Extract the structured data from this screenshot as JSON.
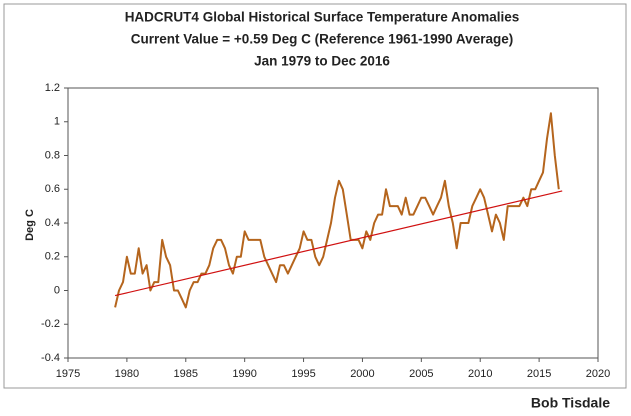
{
  "chart_data": {
    "type": "line",
    "title": "HADCRUT4 Global Historical Surface Temperature Anomalies",
    "subtitle": "Current Value = +0.59 Deg C (Reference 1961-1990 Average)",
    "period": "Jan 1979 to Dec 2016",
    "ylabel": "Deg C",
    "credit": "Bob Tisdale",
    "xlim": [
      1975,
      2020
    ],
    "xticks": [
      1975,
      1980,
      1985,
      1990,
      1995,
      2000,
      2005,
      2010,
      2015,
      2020
    ],
    "ylim": [
      -0.4,
      1.2
    ],
    "yticks": [
      -0.4,
      -0.2,
      0,
      0.2,
      0.4,
      0.6,
      0.8,
      1,
      1.2
    ],
    "grid": false,
    "series": [
      {
        "color": "#b5651d",
        "x": [
          1979,
          1979.33,
          1979.67,
          1980,
          1980.33,
          1980.67,
          1981,
          1981.33,
          1981.67,
          1982,
          1982.33,
          1982.67,
          1983,
          1983.33,
          1983.67,
          1984,
          1984.33,
          1984.67,
          1985,
          1985.33,
          1985.67,
          1986,
          1986.33,
          1986.67,
          1987,
          1987.33,
          1987.67,
          1988,
          1988.33,
          1988.67,
          1989,
          1989.33,
          1989.67,
          1990,
          1990.33,
          1990.67,
          1991,
          1991.33,
          1991.67,
          1992,
          1992.33,
          1992.67,
          1993,
          1993.33,
          1993.67,
          1994,
          1994.33,
          1994.67,
          1995,
          1995.33,
          1995.67,
          1996,
          1996.33,
          1996.67,
          1997,
          1997.33,
          1997.67,
          1998,
          1998.33,
          1998.67,
          1999,
          1999.33,
          1999.67,
          2000,
          2000.33,
          2000.67,
          2001,
          2001.33,
          2001.67,
          2002,
          2002.33,
          2002.67,
          2003,
          2003.33,
          2003.67,
          2004,
          2004.33,
          2004.67,
          2005,
          2005.33,
          2005.67,
          2006,
          2006.33,
          2006.67,
          2007,
          2007.33,
          2007.67,
          2008,
          2008.33,
          2008.67,
          2009,
          2009.33,
          2009.67,
          2010,
          2010.33,
          2010.67,
          2011,
          2011.33,
          2011.67,
          2012,
          2012.33,
          2012.67,
          2013,
          2013.33,
          2013.67,
          2014,
          2014.33,
          2014.67,
          2015,
          2015.33,
          2015.67,
          2016,
          2016.33,
          2016.67
        ],
        "values": [
          -0.1,
          0.0,
          0.05,
          0.2,
          0.1,
          0.1,
          0.25,
          0.1,
          0.15,
          0.0,
          0.05,
          0.05,
          0.3,
          0.2,
          0.15,
          0.0,
          0.0,
          -0.05,
          -0.1,
          0.0,
          0.05,
          0.05,
          0.1,
          0.1,
          0.15,
          0.25,
          0.3,
          0.3,
          0.25,
          0.15,
          0.1,
          0.2,
          0.2,
          0.35,
          0.3,
          0.3,
          0.3,
          0.3,
          0.2,
          0.15,
          0.1,
          0.05,
          0.15,
          0.15,
          0.1,
          0.15,
          0.2,
          0.25,
          0.35,
          0.3,
          0.3,
          0.2,
          0.15,
          0.2,
          0.3,
          0.4,
          0.55,
          0.65,
          0.6,
          0.45,
          0.3,
          0.3,
          0.3,
          0.25,
          0.35,
          0.3,
          0.4,
          0.45,
          0.45,
          0.6,
          0.5,
          0.5,
          0.5,
          0.45,
          0.55,
          0.45,
          0.45,
          0.5,
          0.55,
          0.55,
          0.5,
          0.45,
          0.5,
          0.55,
          0.65,
          0.5,
          0.4,
          0.25,
          0.4,
          0.4,
          0.4,
          0.5,
          0.55,
          0.6,
          0.55,
          0.45,
          0.35,
          0.45,
          0.4,
          0.3,
          0.5,
          0.5,
          0.5,
          0.5,
          0.55,
          0.5,
          0.6,
          0.6,
          0.65,
          0.7,
          0.9,
          1.05,
          0.8,
          0.6
        ]
      },
      {
        "color": "#d01010",
        "x": [
          1979,
          2016.96
        ],
        "values": [
          -0.03,
          0.59
        ]
      }
    ]
  }
}
